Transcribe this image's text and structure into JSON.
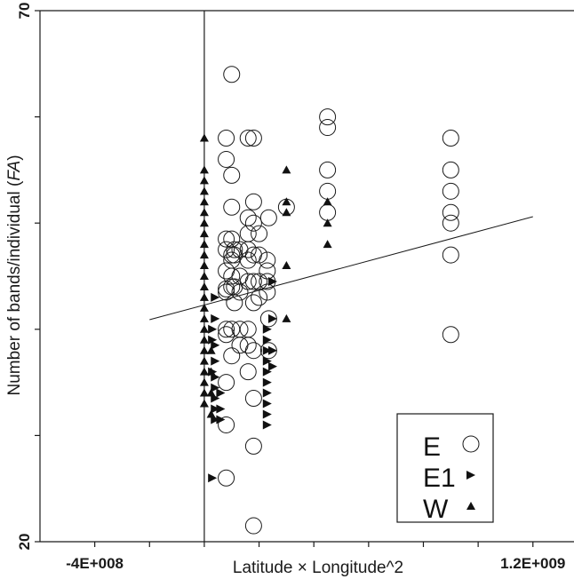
{
  "chart_data": {
    "type": "scatter",
    "title": "",
    "xlabel": "Latitude × Longitude^2",
    "ylabel_main": "Number of bands/individual (",
    "ylabel_italic": "FA",
    "ylabel_end": ")",
    "xlim": [
      -600000000,
      1350000000
    ],
    "ylim": [
      20,
      70
    ],
    "x_tick_labels": [
      {
        "value": -400000000,
        "label": "-4E+008"
      },
      {
        "value": 1200000000,
        "label": "1.2E+009"
      }
    ],
    "x_minor_ticks": [
      -400000000,
      -200000000,
      0,
      200000000,
      400000000,
      600000000,
      800000000,
      1000000000,
      1200000000
    ],
    "y_tick_labels": [
      {
        "value": 20,
        "label": "20"
      },
      {
        "value": 70,
        "label": "70"
      }
    ],
    "y_minor_ticks": [
      20,
      30,
      40,
      50,
      60,
      70
    ],
    "vertical_reference_line_x": 0,
    "grid": false,
    "legend_position": "bottom-right",
    "trendline": {
      "x": [
        -200000000,
        1200000000
      ],
      "y": [
        40.9,
        50.6
      ]
    },
    "series": [
      {
        "name": "E",
        "marker": "circle",
        "points": [
          [
            80000000,
            43.5
          ],
          [
            80000000,
            45.5
          ],
          [
            80000000,
            43.8
          ],
          [
            80000000,
            47.5
          ],
          [
            80000000,
            40.0
          ],
          [
            80000000,
            35.0
          ],
          [
            80000000,
            31.0
          ],
          [
            80000000,
            56.0
          ],
          [
            80000000,
            58.0
          ],
          [
            80000000,
            26.0
          ],
          [
            80000000,
            39.5
          ],
          [
            80000000,
            48.5
          ],
          [
            100000000,
            45.0
          ],
          [
            100000000,
            47.0
          ],
          [
            100000000,
            48.5
          ],
          [
            100000000,
            51.5
          ],
          [
            100000000,
            54.5
          ],
          [
            100000000,
            44.0
          ],
          [
            100000000,
            40.0
          ],
          [
            100000000,
            37.5
          ],
          [
            100000000,
            64.0
          ],
          [
            100000000,
            46.5
          ],
          [
            110000000,
            44.0
          ],
          [
            110000000,
            47.0
          ],
          [
            110000000,
            47.5
          ],
          [
            110000000,
            42.5
          ],
          [
            130000000,
            47.5
          ],
          [
            130000000,
            45.0
          ],
          [
            130000000,
            40.0
          ],
          [
            130000000,
            38.5
          ],
          [
            130000000,
            43.5
          ],
          [
            160000000,
            44.5
          ],
          [
            160000000,
            46.5
          ],
          [
            160000000,
            47.5
          ],
          [
            160000000,
            49.0
          ],
          [
            160000000,
            50.5
          ],
          [
            160000000,
            58.0
          ],
          [
            160000000,
            40.0
          ],
          [
            160000000,
            38.5
          ],
          [
            160000000,
            36.0
          ],
          [
            180000000,
            42.5
          ],
          [
            180000000,
            44.5
          ],
          [
            180000000,
            47.0
          ],
          [
            180000000,
            50.0
          ],
          [
            180000000,
            52.0
          ],
          [
            180000000,
            38.0
          ],
          [
            180000000,
            33.5
          ],
          [
            180000000,
            29.0
          ],
          [
            180000000,
            58.0
          ],
          [
            180000000,
            21.5
          ],
          [
            200000000,
            43.0
          ],
          [
            200000000,
            44.5
          ],
          [
            200000000,
            47.0
          ],
          [
            200000000,
            49.0
          ],
          [
            230000000,
            45.5
          ],
          [
            230000000,
            44.5
          ],
          [
            230000000,
            46.5
          ],
          [
            230000000,
            43.5
          ],
          [
            235000000,
            41.0
          ],
          [
            235000000,
            38.0
          ],
          [
            235000000,
            50.5
          ],
          [
            300000000,
            51.5
          ],
          [
            450000000,
            60.0
          ],
          [
            450000000,
            59.0
          ],
          [
            450000000,
            55.0
          ],
          [
            450000000,
            53.0
          ],
          [
            450000000,
            51.0
          ],
          [
            900000000,
            58.0
          ],
          [
            900000000,
            55.0
          ],
          [
            900000000,
            53.0
          ],
          [
            900000000,
            51.0
          ],
          [
            900000000,
            50.0
          ],
          [
            900000000,
            47.0
          ],
          [
            900000000,
            39.5
          ],
          [
            900000000,
            26.0
          ]
        ]
      },
      {
        "name": "E1",
        "marker": "triangle-right",
        "points": [
          [
            30000000,
            26.0
          ],
          [
            30000000,
            40.0
          ],
          [
            30000000,
            39.0
          ],
          [
            30000000,
            36.0
          ],
          [
            40000000,
            43.0
          ],
          [
            40000000,
            41.0
          ],
          [
            40000000,
            38.5
          ],
          [
            40000000,
            37.0
          ],
          [
            40000000,
            35.5
          ],
          [
            40000000,
            34.5
          ],
          [
            40000000,
            33.5
          ],
          [
            40000000,
            32.5
          ],
          [
            40000000,
            31.5
          ],
          [
            60000000,
            34.0
          ],
          [
            60000000,
            32.5
          ],
          [
            60000000,
            31.5
          ],
          [
            230000000,
            40.0
          ],
          [
            230000000,
            39.0
          ],
          [
            230000000,
            38.0
          ],
          [
            230000000,
            37.0
          ],
          [
            230000000,
            36.0
          ],
          [
            230000000,
            35.0
          ],
          [
            230000000,
            34.0
          ],
          [
            230000000,
            33.0
          ],
          [
            230000000,
            32.0
          ],
          [
            230000000,
            31.0
          ],
          [
            250000000,
            44.5
          ],
          [
            250000000,
            41.0
          ],
          [
            250000000,
            38.0
          ],
          [
            250000000,
            36.5
          ]
        ]
      },
      {
        "name": "W",
        "marker": "triangle-up",
        "points": [
          [
            0,
            58.0
          ],
          [
            0,
            55.0
          ],
          [
            0,
            54.0
          ],
          [
            0,
            53.0
          ],
          [
            0,
            52.0
          ],
          [
            0,
            51.0
          ],
          [
            0,
            50.0
          ],
          [
            0,
            49.0
          ],
          [
            0,
            48.0
          ],
          [
            0,
            47.0
          ],
          [
            0,
            46.0
          ],
          [
            0,
            45.0
          ],
          [
            0,
            44.0
          ],
          [
            0,
            43.0
          ],
          [
            0,
            42.0
          ],
          [
            0,
            41.0
          ],
          [
            0,
            40.0
          ],
          [
            0,
            39.0
          ],
          [
            0,
            38.0
          ],
          [
            0,
            37.0
          ],
          [
            0,
            36.0
          ],
          [
            0,
            35.0
          ],
          [
            0,
            34.0
          ],
          [
            0,
            33.0
          ],
          [
            25000000,
            38.0
          ],
          [
            25000000,
            36.0
          ],
          [
            25000000,
            34.0
          ],
          [
            25000000,
            32.0
          ],
          [
            300000000,
            55.0
          ],
          [
            300000000,
            52.0
          ],
          [
            300000000,
            51.0
          ],
          [
            300000000,
            46.0
          ],
          [
            300000000,
            41.0
          ],
          [
            450000000,
            52.0
          ],
          [
            450000000,
            50.0
          ],
          [
            450000000,
            48.0
          ]
        ]
      }
    ],
    "legend": [
      {
        "label": "E",
        "marker": "circle"
      },
      {
        "label": "E1",
        "marker": "triangle-right"
      },
      {
        "label": "W",
        "marker": "triangle-up"
      }
    ]
  }
}
